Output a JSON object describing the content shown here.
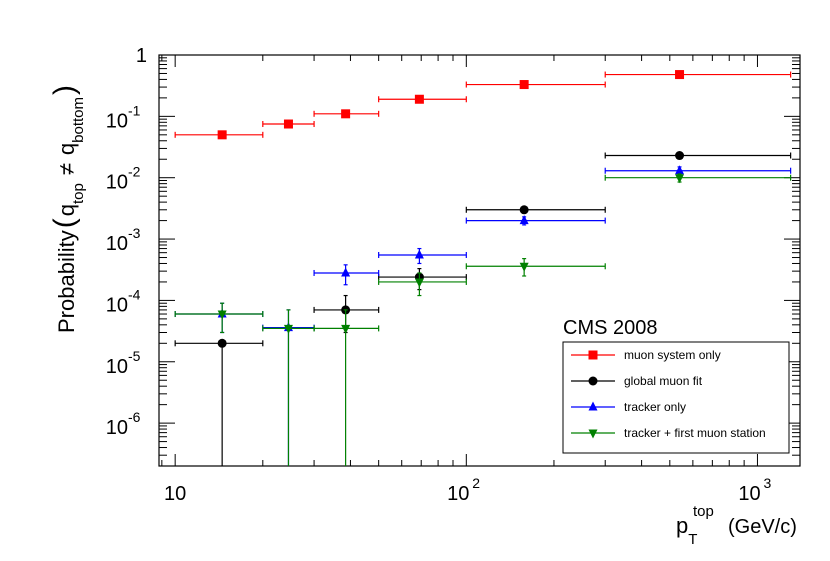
{
  "chart_data": {
    "type": "scatter",
    "title": "",
    "annotation": "CMS 2008",
    "xlabel": {
      "base": "p",
      "sub": "T",
      "sup": "top",
      "units": "(GeV/c)"
    },
    "ylabel": {
      "prefix": "Probability",
      "q": "q",
      "top_sub": "top",
      "neq": "≠",
      "bottom_sub": "bottom"
    },
    "xscale": "log",
    "yscale": "log",
    "xlim": [
      8.8,
      1400
    ],
    "ylim": [
      2e-07,
      1
    ],
    "x_ticks": [
      {
        "value": 10,
        "label": "10"
      },
      {
        "value": 100,
        "base": "10",
        "exp": "2"
      },
      {
        "value": 1000,
        "base": "10",
        "exp": "3"
      }
    ],
    "y_ticks": [
      {
        "value": 1,
        "label": "1"
      },
      {
        "value": 0.1,
        "base": "10",
        "exp": "-1"
      },
      {
        "value": 0.01,
        "base": "10",
        "exp": "-2"
      },
      {
        "value": 0.001,
        "base": "10",
        "exp": "-3"
      },
      {
        "value": 0.0001,
        "base": "10",
        "exp": "-4"
      },
      {
        "value": 1e-05,
        "base": "10",
        "exp": "-5"
      },
      {
        "value": 1e-06,
        "base": "10",
        "exp": "-6"
      }
    ],
    "legend_position": "bottom-right",
    "series": [
      {
        "name": "muon system only",
        "color": "#ff0000",
        "marker": "square",
        "points": [
          {
            "x": 14.5,
            "xlo": 10,
            "xhi": 20,
            "y": 0.05,
            "ylo": 0.05,
            "yhi": 0.05
          },
          {
            "x": 24.5,
            "xlo": 20,
            "xhi": 30,
            "y": 0.075,
            "ylo": 0.075,
            "yhi": 0.075
          },
          {
            "x": 38.5,
            "xlo": 30,
            "xhi": 50,
            "y": 0.11,
            "ylo": 0.11,
            "yhi": 0.11
          },
          {
            "x": 69,
            "xlo": 50,
            "xhi": 100,
            "y": 0.19,
            "ylo": 0.19,
            "yhi": 0.19
          },
          {
            "x": 158,
            "xlo": 100,
            "xhi": 300,
            "y": 0.33,
            "ylo": 0.33,
            "yhi": 0.33
          },
          {
            "x": 540,
            "xlo": 300,
            "xhi": 1300,
            "y": 0.48,
            "ylo": 0.48,
            "yhi": 0.48
          }
        ]
      },
      {
        "name": "global muon fit",
        "color": "#000000",
        "marker": "circle",
        "points": [
          {
            "x": 14.5,
            "xlo": 10,
            "xhi": 20,
            "y": 2e-05,
            "ylo": 2e-07,
            "yhi": 2e-05
          },
          {
            "x": 38.5,
            "xlo": 30,
            "xhi": 50,
            "y": 7e-05,
            "ylo": 3e-05,
            "yhi": 0.00012
          },
          {
            "x": 69,
            "xlo": 50,
            "xhi": 100,
            "y": 0.00024,
            "ylo": 0.00015,
            "yhi": 0.00033
          },
          {
            "x": 158,
            "xlo": 100,
            "xhi": 300,
            "y": 0.003,
            "ylo": 0.0027,
            "yhi": 0.0033
          },
          {
            "x": 540,
            "xlo": 300,
            "xhi": 1300,
            "y": 0.023,
            "ylo": 0.023,
            "yhi": 0.023
          }
        ]
      },
      {
        "name": "tracker only",
        "color": "#0000ff",
        "marker": "triangle-up",
        "points": [
          {
            "x": 14.5,
            "xlo": 10,
            "xhi": 20,
            "y": 6e-05,
            "ylo": 3e-05,
            "yhi": 9e-05
          },
          {
            "x": 24.5,
            "xlo": 20,
            "xhi": 30,
            "y": 3.6e-05,
            "ylo": 2e-07,
            "yhi": 7e-05
          },
          {
            "x": 38.5,
            "xlo": 30,
            "xhi": 50,
            "y": 0.00028,
            "ylo": 0.00018,
            "yhi": 0.00038
          },
          {
            "x": 69,
            "xlo": 50,
            "xhi": 100,
            "y": 0.00055,
            "ylo": 0.0004,
            "yhi": 0.0007
          },
          {
            "x": 158,
            "xlo": 100,
            "xhi": 300,
            "y": 0.002,
            "ylo": 0.0017,
            "yhi": 0.0023
          },
          {
            "x": 540,
            "xlo": 300,
            "xhi": 1300,
            "y": 0.013,
            "ylo": 0.011,
            "yhi": 0.015
          }
        ]
      },
      {
        "name": "tracker + first muon station",
        "color": "#008000",
        "marker": "triangle-down",
        "points": [
          {
            "x": 14.5,
            "xlo": 10,
            "xhi": 20,
            "y": 6e-05,
            "ylo": 3e-05,
            "yhi": 9e-05
          },
          {
            "x": 24.5,
            "xlo": 20,
            "xhi": 30,
            "y": 3.5e-05,
            "ylo": 2e-07,
            "yhi": 7e-05
          },
          {
            "x": 38.5,
            "xlo": 30,
            "xhi": 50,
            "y": 3.5e-05,
            "ylo": 2e-07,
            "yhi": 7e-05
          },
          {
            "x": 69,
            "xlo": 50,
            "xhi": 100,
            "y": 0.0002,
            "ylo": 0.00012,
            "yhi": 0.00028
          },
          {
            "x": 158,
            "xlo": 100,
            "xhi": 300,
            "y": 0.00036,
            "ylo": 0.00025,
            "yhi": 0.00048
          },
          {
            "x": 540,
            "xlo": 300,
            "xhi": 1300,
            "y": 0.01,
            "ylo": 0.0085,
            "yhi": 0.0115
          }
        ]
      }
    ]
  }
}
